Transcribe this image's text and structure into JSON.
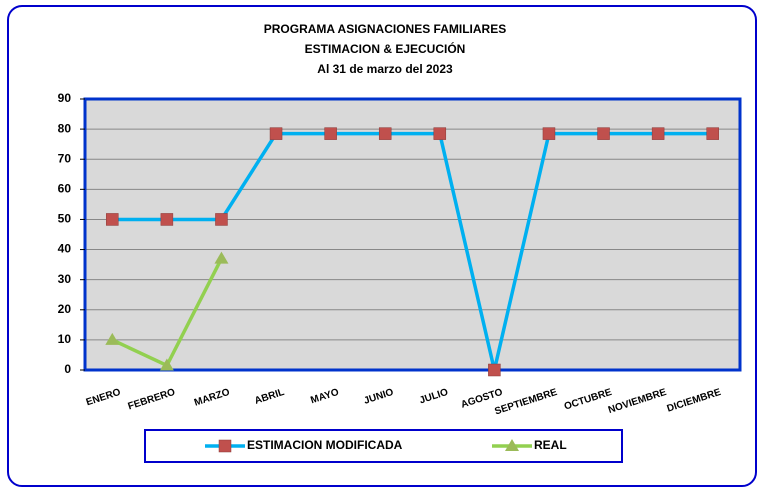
{
  "chart_data": {
    "type": "line",
    "title": [
      "PROGRAMA ASIGNACIONES FAMILIARES",
      "ESTIMACION & EJECUCIÓN",
      "Al 31 de marzo del 2023"
    ],
    "categories": [
      "ENERO",
      "FEBRERO",
      "MARZO",
      "ABRIL",
      "MAYO",
      "JUNIO",
      "JULIO",
      "AGOSTO",
      "SEPTIEMBRE",
      "OCTUBRE",
      "NOVIEMBRE",
      "DICIEMBRE"
    ],
    "series": [
      {
        "name": "ESTIMACION MODIFICADA",
        "color": "#00b0f0",
        "marker": "square",
        "marker_color": "#c0504d",
        "values": [
          50,
          50,
          50,
          78.5,
          78.5,
          78.5,
          78.5,
          0,
          78.5,
          78.5,
          78.5,
          78.5
        ]
      },
      {
        "name": "REAL",
        "color": "#92d050",
        "marker": "triangle",
        "marker_color": "#9bbb59",
        "values": [
          10,
          1.5,
          37,
          null,
          null,
          null,
          null,
          null,
          null,
          null,
          null,
          null
        ]
      }
    ],
    "ylim": [
      0,
      90
    ],
    "yticks": [
      0,
      10,
      20,
      30,
      40,
      50,
      60,
      70,
      80,
      90
    ],
    "grid": true,
    "legend": "bottom"
  }
}
